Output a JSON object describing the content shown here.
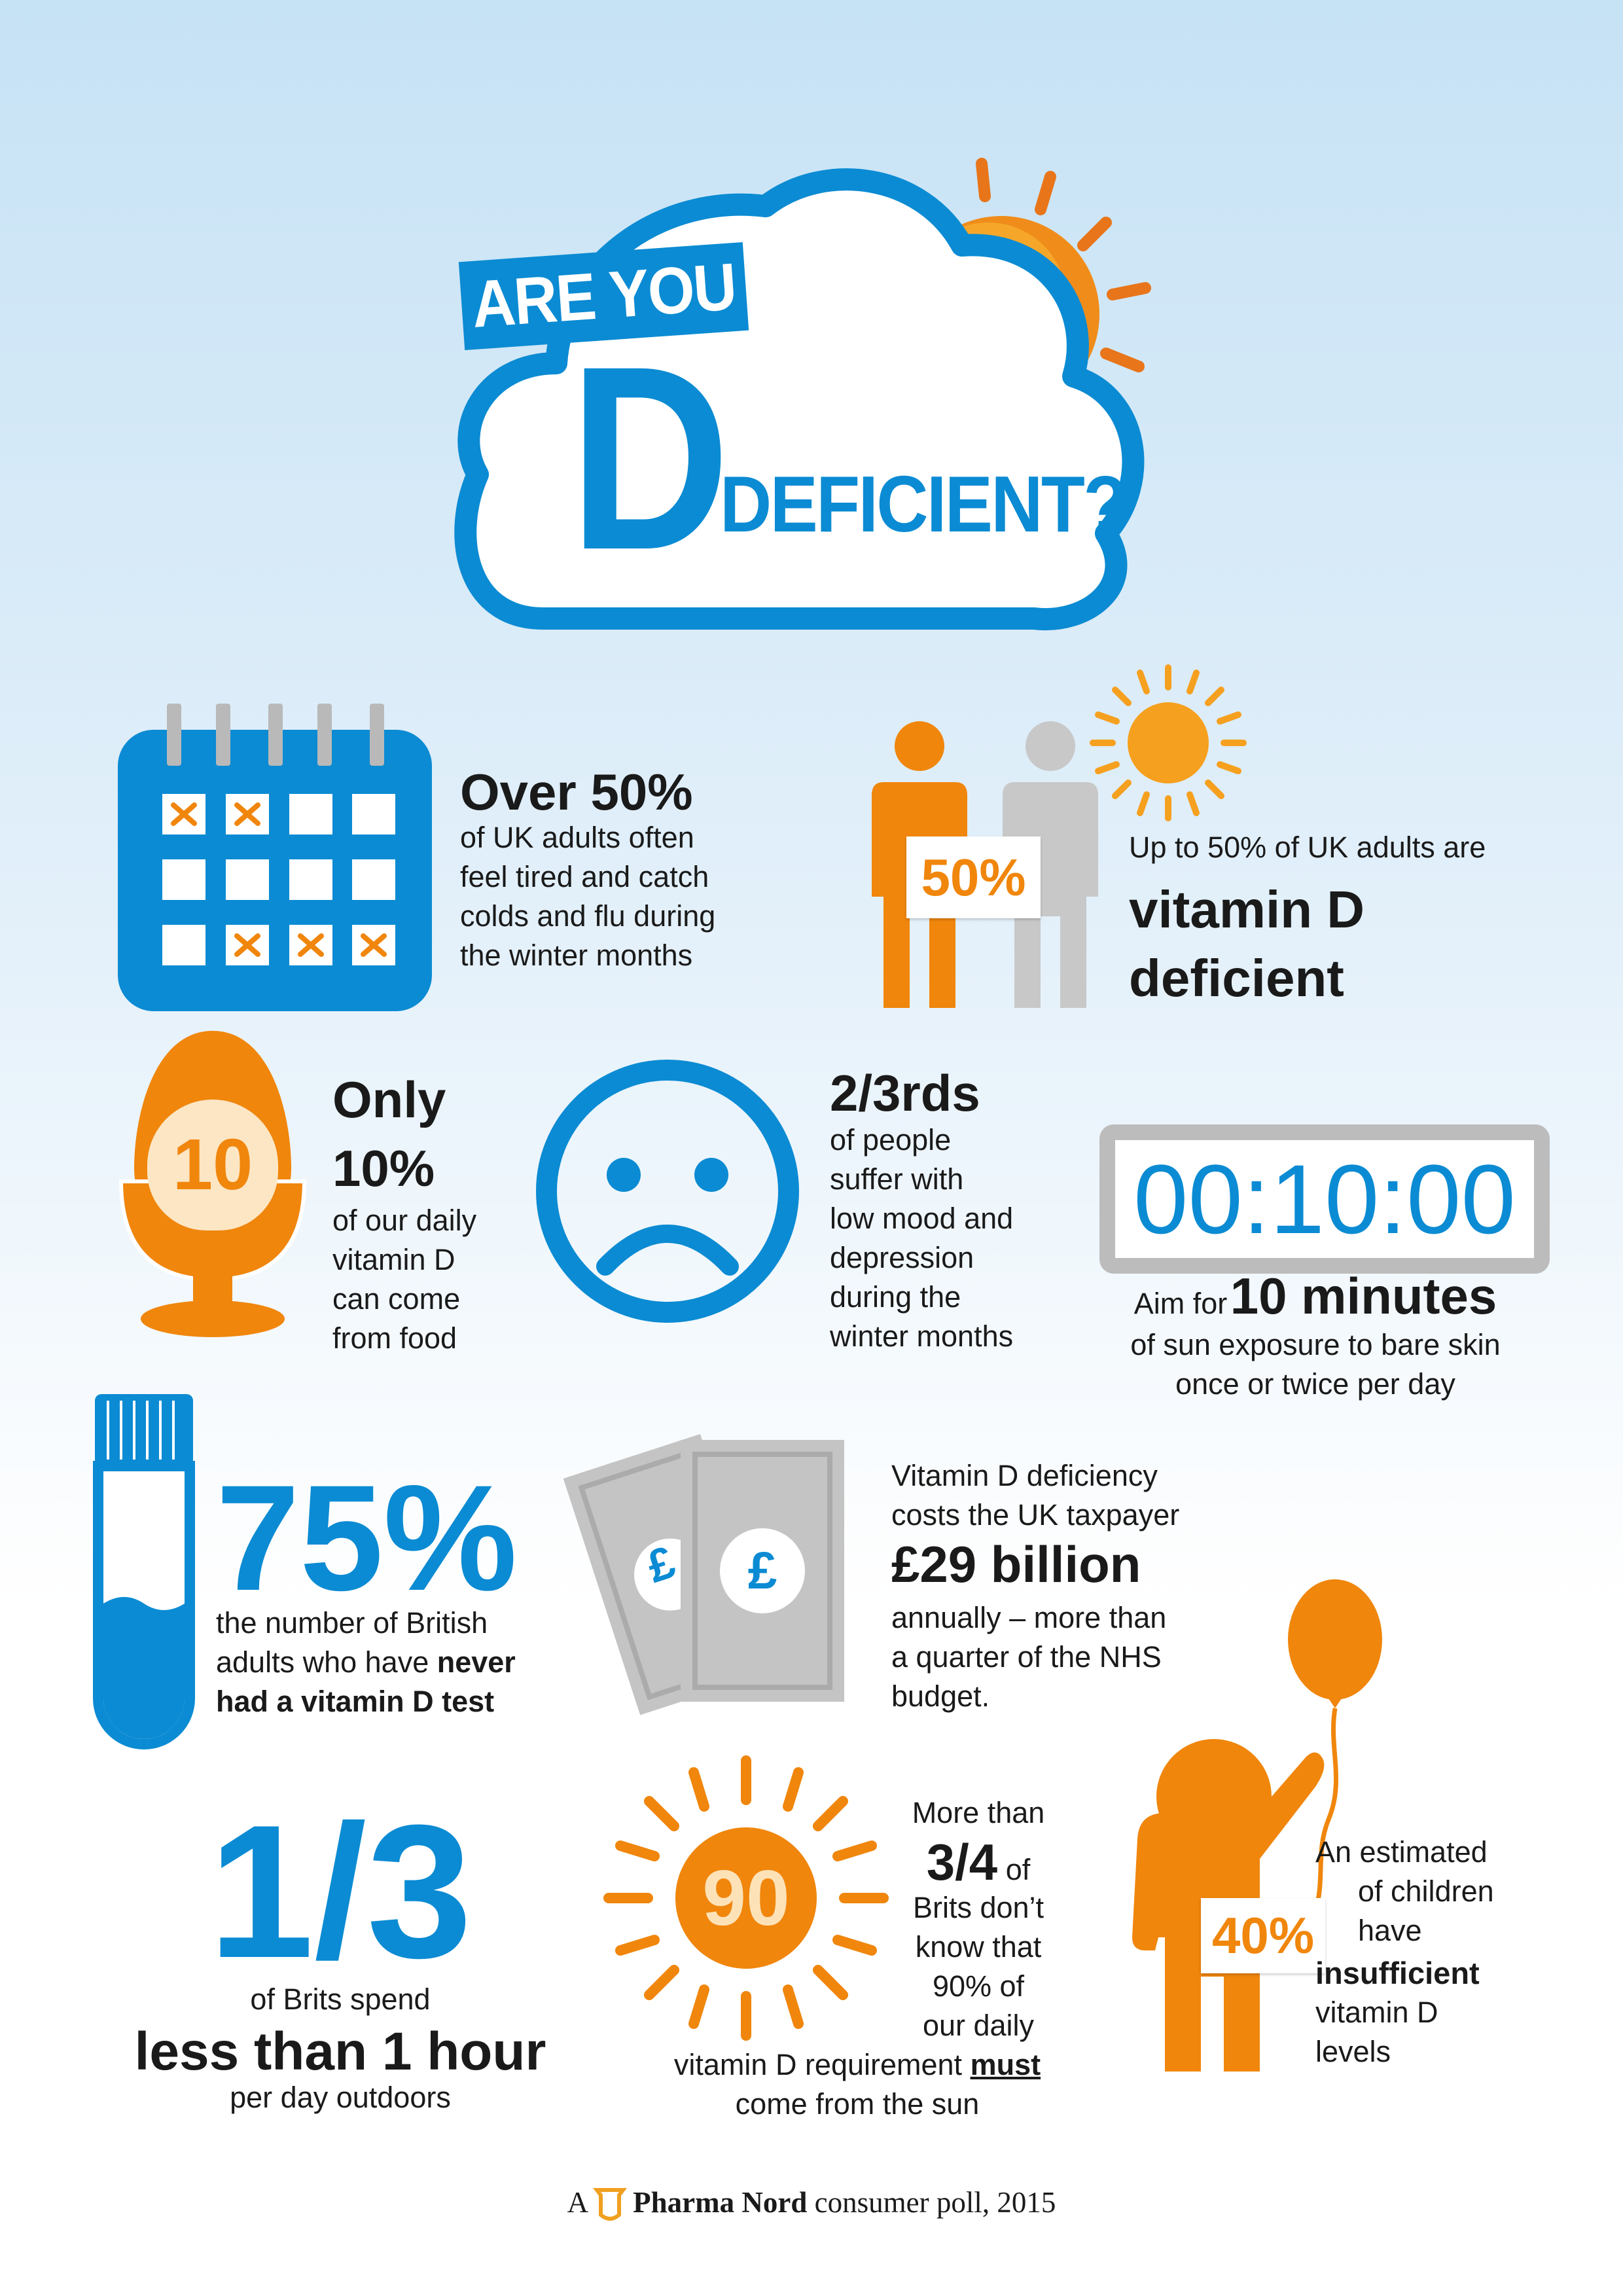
{
  "header": {
    "are_you": "ARE YOU",
    "d_letter": "D",
    "deficient": "DEFICIENT?"
  },
  "stat_tired": {
    "heading": "Over 50%",
    "lines": [
      "of UK adults often",
      "feel tired and catch",
      "colds and flu during",
      "the winter months"
    ]
  },
  "stat_deficient": {
    "badge": "50%",
    "intro": "Up to 50% of UK adults are",
    "emph_1": "vitamin D",
    "emph_2": "deficient"
  },
  "stat_food": {
    "egg_number": "10",
    "heading_1": "Only",
    "heading_2": "10%",
    "lines": [
      "of our daily",
      "vitamin D",
      "can come",
      "from food"
    ]
  },
  "stat_mood": {
    "heading": "2/3rds",
    "lines": [
      "of people",
      "suffer with",
      "low mood and",
      "depression",
      "during the",
      "winter months"
    ]
  },
  "stat_sun_time": {
    "timer": "00:10:00",
    "aim_for": "Aim for",
    "emph": "10 minutes",
    "lines": [
      "of sun exposure to bare skin",
      "once or twice per day"
    ]
  },
  "stat_test": {
    "heading": "75%",
    "line_1": "the number of British",
    "line_2_plain": "adults who have ",
    "line_2_bold": "never",
    "line_3_bold": "had a vitamin D test"
  },
  "stat_cost": {
    "note_symbol": "£",
    "lines_top": [
      "Vitamin D deficiency",
      "costs the UK taxpayer"
    ],
    "emph": "£29 billion",
    "lines_bottom": [
      "annually – more than",
      "a quarter of the NHS",
      "budget."
    ]
  },
  "stat_outdoors": {
    "heading": "1/3",
    "line_1": "of Brits spend",
    "emph": "less than 1 hour",
    "line_2": "per day outdoors"
  },
  "stat_sun_req": {
    "sun_number": "90",
    "line_1": "More than",
    "emph": "3/4",
    "emph_suffix": " of",
    "lines": [
      "Brits don’t",
      "know that",
      "90% of",
      "our daily"
    ],
    "line_req_plain": "vitamin D requirement ",
    "line_req_bold": "must",
    "line_last": "come from the sun"
  },
  "stat_children": {
    "badge": "40%",
    "lines_top": [
      "An estimated",
      "of children",
      "have"
    ],
    "emph": "insufficient",
    "lines_bottom": [
      "vitamin D",
      "levels"
    ]
  },
  "footer": {
    "prefix": "A",
    "brand": "Pharma Nord",
    "suffix": "consumer poll, 2015"
  },
  "colors": {
    "blue": "#0b8bd3",
    "orange": "#f0860c",
    "grey": "#bdbdbd"
  }
}
